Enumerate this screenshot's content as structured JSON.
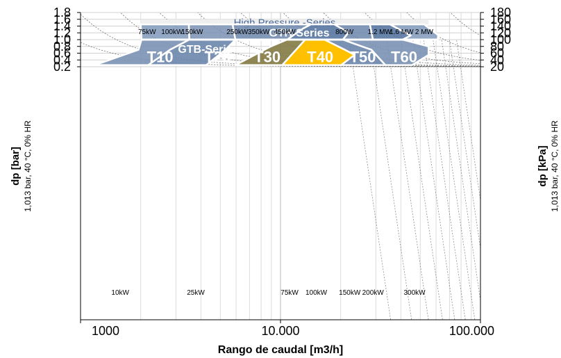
{
  "chart_data": {
    "type": "area",
    "xlabel": "Rango de caudal [m3/h]",
    "x_scale": "log",
    "xlim": [
      1000,
      100000
    ],
    "x_ticks": [
      {
        "value": 1000,
        "label": "1000"
      },
      {
        "value": 10000,
        "label": "10.000"
      },
      {
        "value": 100000,
        "label": "100.000"
      }
    ],
    "ylabel_left": "dp [bar]",
    "ylabel_left_sub": "1,013 bar, 40 °C, 0% HR",
    "ylim_left": [
      0.1,
      1.8
    ],
    "y_ticks_left": [
      "0.2",
      "0.4",
      "0.6",
      "0.8",
      "1.0",
      "1.2",
      "1.4",
      "1.6",
      "1.8"
    ],
    "ylabel_right": "dp [kPa]",
    "ylabel_right_sub": "1,013 bar, 40 °C, 0% HR",
    "y_ticks_right": [
      "20",
      "40",
      "60",
      "80",
      "100",
      "120",
      "140",
      "160",
      "180"
    ],
    "grid": true,
    "power_labels_top": [
      {
        "label": "75kW",
        "x": 2150
      },
      {
        "label": "100kW",
        "x": 2870
      },
      {
        "label": "150kW",
        "x": 3620
      },
      {
        "label": "250kW",
        "x": 6080
      },
      {
        "label": "350kW",
        "x": 7780
      },
      {
        "label": "450kW",
        "x": 10500
      },
      {
        "label": "800W",
        "x": 20900
      },
      {
        "label": "1.2 MW",
        "x": 31300
      },
      {
        "label": "1.6 MW",
        "x": 40300
      },
      {
        "label": "2  MW",
        "x": 52300
      }
    ],
    "power_labels_bottom": [
      {
        "label": "10kW",
        "x": 1580
      },
      {
        "label": "25kW",
        "x": 3770
      },
      {
        "label": "75kW",
        "x": 11100
      },
      {
        "label": "100kW",
        "x": 15100
      },
      {
        "label": "150kW",
        "x": 22200
      },
      {
        "label": "200kW",
        "x": 29000
      },
      {
        "label": "300kW",
        "x": 46800
      }
    ],
    "series_groups": [
      {
        "name": "High Pressure -Series",
        "p_min": 1.45,
        "p_max": 1.6,
        "x_min": 2000,
        "x_max": 55000
      },
      {
        "name": "GTH-Series",
        "p_min": 1.0,
        "p_max": 1.45,
        "label_at": {
          "x": 12400,
          "p": 1.19
        }
      },
      {
        "name": "GTB-Series",
        "p_min": 0.25,
        "p_max": 1.0,
        "label_at": {
          "x": 4350,
          "p": 0.71
        }
      }
    ],
    "models": [
      {
        "name": "T10",
        "color": "#7a92b4",
        "label_at": {
          "x": 2500,
          "p": 0.52
        },
        "polygon": [
          [
            1180,
            0.25
          ],
          [
            1950,
            0.7
          ],
          [
            2020,
            1.0
          ],
          [
            3500,
            1.0
          ],
          [
            2800,
            0.7
          ],
          [
            2180,
            0.25
          ]
        ]
      },
      {
        "name": "T20",
        "color": "#6c86ab",
        "label_at": {
          "x": 4850,
          "p": 0.52
        },
        "polygon": [
          [
            2180,
            0.25
          ],
          [
            2800,
            0.7
          ],
          [
            3500,
            1.0
          ],
          [
            5950,
            1.0
          ],
          [
            5300,
            0.7
          ],
          [
            4250,
            0.25
          ]
        ]
      },
      {
        "name": "T30",
        "color": "#847a45",
        "label_at": {
          "x": 8600,
          "p": 0.52
        },
        "polygon": [
          [
            5950,
            0.25
          ],
          [
            8950,
            0.8
          ],
          [
            10800,
            1.0
          ],
          [
            13300,
            1.0
          ],
          [
            10200,
            0.25
          ]
        ]
      },
      {
        "name": "T40",
        "color": "#ffc000",
        "label_at": {
          "x": 15800,
          "p": 0.52
        },
        "polygon": [
          [
            10200,
            0.25
          ],
          [
            13300,
            1.0
          ],
          [
            16600,
            1.0
          ],
          [
            21000,
            0.7
          ],
          [
            23500,
            0.55
          ],
          [
            20100,
            0.25
          ]
        ]
      },
      {
        "name": "T50",
        "color": "#6c86ab",
        "label_at": {
          "x": 25800,
          "p": 0.52
        },
        "polygon": [
          [
            20100,
            0.25
          ],
          [
            23500,
            0.55
          ],
          [
            21000,
            0.7
          ],
          [
            16600,
            1.0
          ],
          [
            20500,
            1.0
          ],
          [
            28500,
            0.7
          ],
          [
            33500,
            0.25
          ]
        ]
      },
      {
        "name": "T60",
        "color": "#7a92b4",
        "label_at": {
          "x": 41500,
          "p": 0.52
        },
        "polygon": [
          [
            33500,
            0.25
          ],
          [
            28500,
            0.7
          ],
          [
            20500,
            1.0
          ],
          [
            40800,
            1.0
          ],
          [
            55000,
            0.8
          ],
          [
            55000,
            0.55
          ],
          [
            45500,
            0.25
          ]
        ]
      }
    ],
    "gth_columns": [
      {
        "color": "#8099bb",
        "polygon": [
          [
            2020,
            1.0
          ],
          [
            3500,
            1.0
          ],
          [
            3480,
            1.45
          ],
          [
            2000,
            1.45
          ]
        ]
      },
      {
        "color": "#7a92b4",
        "polygon": [
          [
            3500,
            1.0
          ],
          [
            5950,
            1.0
          ],
          [
            5760,
            1.45
          ],
          [
            3480,
            1.45
          ]
        ]
      },
      {
        "color": "#6c86ab",
        "polygon": [
          [
            5950,
            1.0
          ],
          [
            10800,
            1.0
          ],
          [
            13000,
            1.33
          ],
          [
            14200,
            1.45
          ],
          [
            5760,
            1.45
          ]
        ]
      },
      {
        "color": "#4f6f9c",
        "polygon": [
          [
            10800,
            1.0
          ],
          [
            20500,
            1.0
          ],
          [
            21900,
            1.21
          ],
          [
            18600,
            1.45
          ],
          [
            14200,
            1.45
          ],
          [
            13000,
            1.33
          ]
        ]
      },
      {
        "color": "#6c86ab",
        "polygon": [
          [
            20500,
            1.0
          ],
          [
            29000,
            1.0
          ],
          [
            28000,
            1.45
          ],
          [
            18600,
            1.45
          ],
          [
            21900,
            1.21
          ]
        ]
      },
      {
        "color": "#4f6f9c",
        "polygon": [
          [
            29000,
            1.0
          ],
          [
            40800,
            1.0
          ],
          [
            44800,
            1.12
          ],
          [
            35300,
            1.45
          ],
          [
            28000,
            1.45
          ]
        ]
      },
      {
        "color": "#8099bb",
        "polygon": [
          [
            40800,
            1.0
          ],
          [
            61000,
            1.0
          ],
          [
            61500,
            1.13
          ],
          [
            52300,
            1.45
          ],
          [
            35300,
            1.45
          ],
          [
            44800,
            1.12
          ]
        ]
      }
    ]
  }
}
